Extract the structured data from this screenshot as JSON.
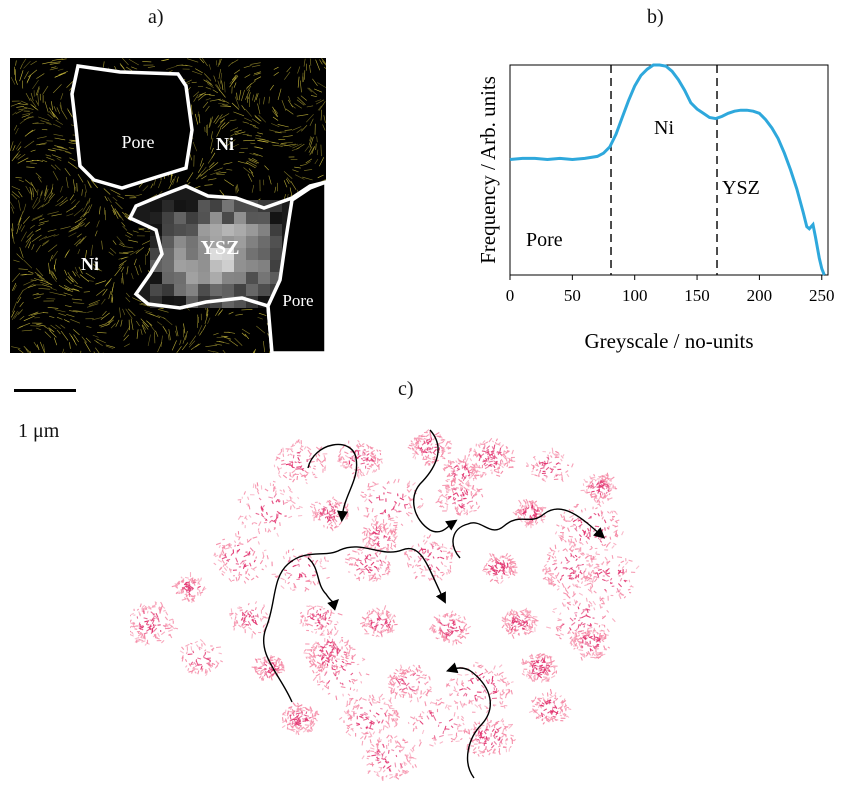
{
  "panels": {
    "a": "a)",
    "b": "b)",
    "c": "c)"
  },
  "micrograph": {
    "labels": [
      "Pore",
      "Ni",
      "YSZ",
      "Ni",
      "Pore"
    ],
    "colors": {
      "background": "#000000",
      "flux": "#d8c840",
      "outline": "#ffffff"
    }
  },
  "scale_bar": {
    "label": "1 μm"
  },
  "chart_data": {
    "type": "line",
    "xlabel": "Greyscale  / no-units",
    "ylabel": "Frequency / Arb. units",
    "xlim": [
      0,
      255
    ],
    "xticks": [
      0,
      50,
      100,
      150,
      200,
      250
    ],
    "ylim": [
      0,
      1
    ],
    "grid": false,
    "legend": "none",
    "color": "#2ea8dc",
    "thresholds": [
      81,
      166
    ],
    "region_labels": [
      "Pore",
      "Ni",
      "YSZ"
    ],
    "x": [
      0,
      10,
      20,
      30,
      40,
      50,
      60,
      70,
      75,
      80,
      85,
      90,
      95,
      100,
      105,
      110,
      115,
      120,
      125,
      130,
      135,
      140,
      145,
      150,
      155,
      160,
      165,
      170,
      175,
      180,
      185,
      190,
      195,
      200,
      205,
      210,
      215,
      220,
      225,
      230,
      235,
      238,
      240,
      243,
      245,
      248,
      250,
      252
    ],
    "y": [
      0.55,
      0.555,
      0.555,
      0.55,
      0.555,
      0.55,
      0.555,
      0.565,
      0.58,
      0.61,
      0.67,
      0.75,
      0.83,
      0.9,
      0.95,
      0.98,
      1.0,
      1.0,
      0.995,
      0.97,
      0.93,
      0.88,
      0.82,
      0.79,
      0.77,
      0.75,
      0.745,
      0.755,
      0.77,
      0.78,
      0.785,
      0.785,
      0.78,
      0.77,
      0.74,
      0.7,
      0.65,
      0.58,
      0.5,
      0.41,
      0.3,
      0.23,
      0.22,
      0.24,
      0.18,
      0.08,
      0.03,
      0.0
    ]
  },
  "pointcloud": {
    "colors": {
      "dense": "#e2336f",
      "light": "#f58aa6",
      "arrows": "#000000"
    }
  }
}
